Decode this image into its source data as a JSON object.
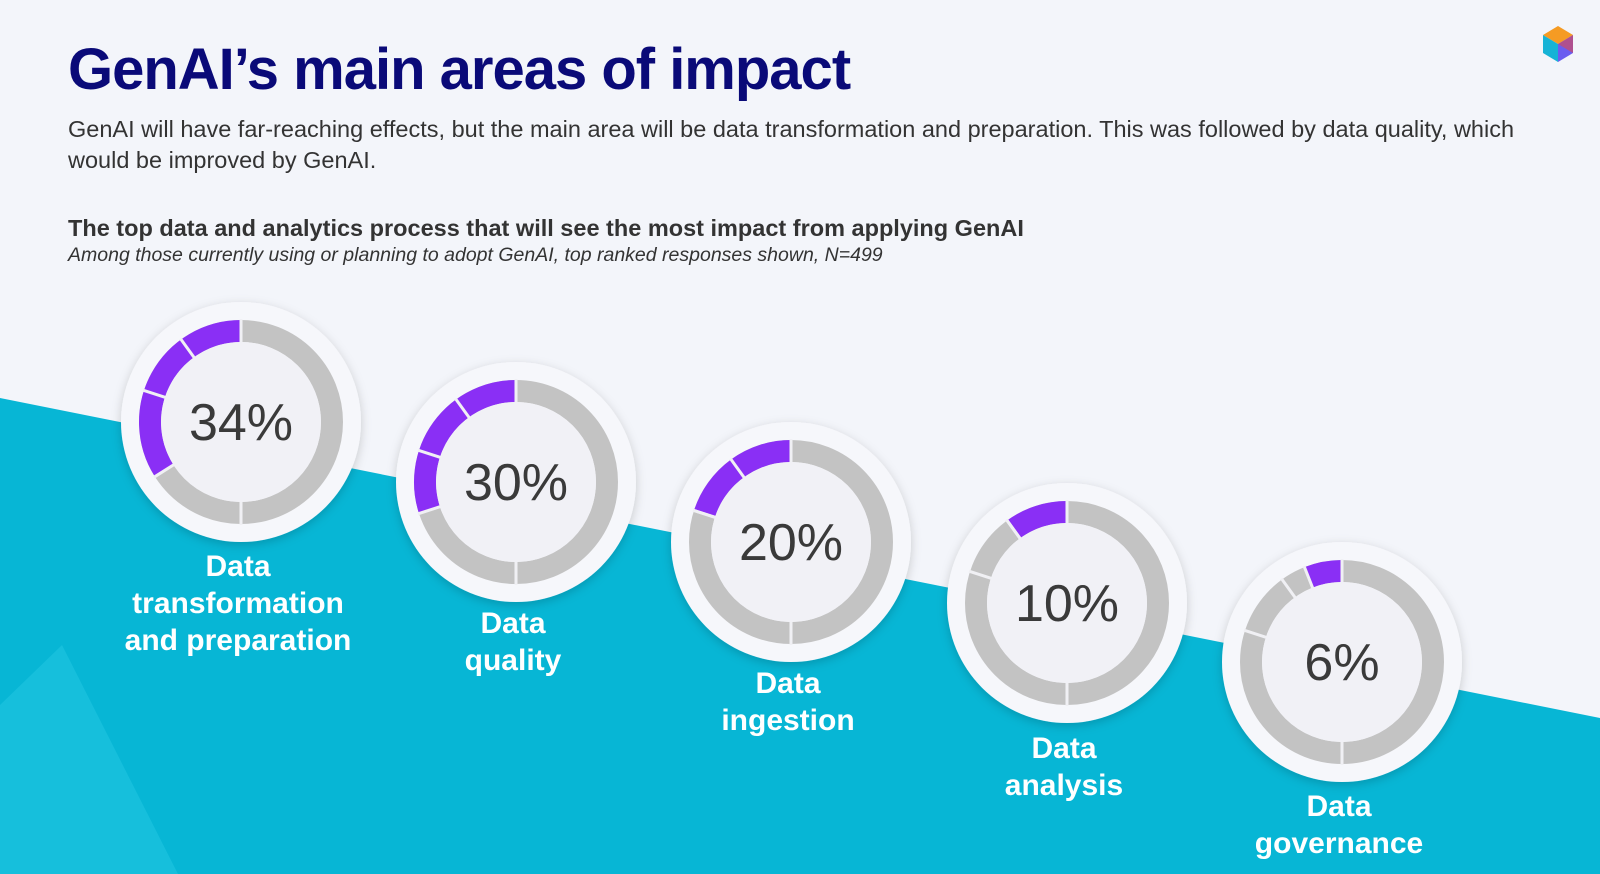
{
  "header": {
    "title": "GenAI’s main areas of impact",
    "subtitle": "GenAI will have far-reaching effects, but the main area will be data transformation and preparation. This was followed by data quality, which would be improved by GenAI."
  },
  "logo": {
    "icon": "hexagon-logo-icon"
  },
  "colors": {
    "title": "#0a0a78",
    "teal": "#07b6d5",
    "accent": "#8a2ff5",
    "ring": "#c3c3c3",
    "ring_gap": "#f0f0f4",
    "inner": "#f1f1f6"
  },
  "chart_data": {
    "type": "donut",
    "title": "The top data and analytics process that will see the most impact from applying GenAI",
    "subtitle": "Among those currently using or planning to adopt GenAI, top ranked responses shown, N=499",
    "unit": "%",
    "categories": [
      "Data transformation and preparation",
      "Data quality",
      "Data ingestion",
      "Data analysis",
      "Data governance"
    ],
    "values": [
      34,
      30,
      20,
      10,
      6
    ],
    "value_labels": [
      "34%",
      "30%",
      "20%",
      "10%",
      "6%"
    ],
    "label_lines": [
      [
        "Data",
        "transformation",
        "and preparation"
      ],
      [
        "Data",
        "quality"
      ],
      [
        "Data",
        "ingestion"
      ],
      [
        "Data",
        "analysis"
      ],
      [
        "Data",
        "governance"
      ]
    ]
  }
}
